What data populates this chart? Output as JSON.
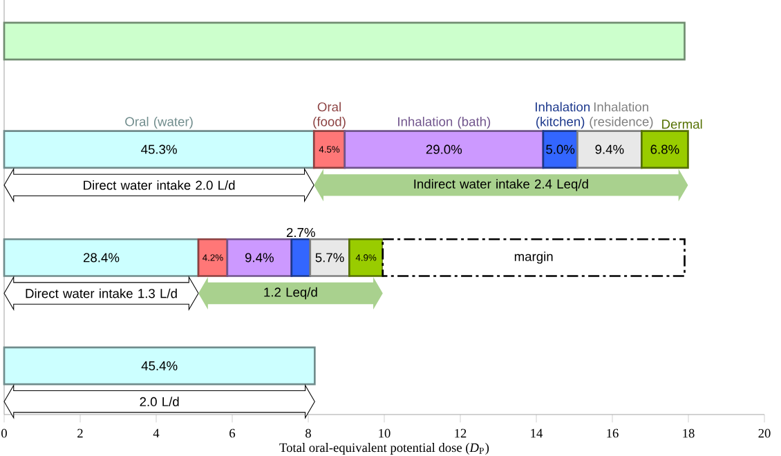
{
  "chart_data": {
    "type": "bar",
    "orientation": "horizontal",
    "stacked": true,
    "categories": [
      null,
      null,
      null,
      null
    ],
    "series": [
      {
        "color": "#ccffcc",
        "values": [
          17.9,
          null,
          null,
          null
        ]
      },
      {
        "name": "Oral (water)",
        "color": "#ccffff",
        "values": [
          null,
          8.15,
          5.11,
          8.17
        ]
      },
      {
        "name": "Oral (food)",
        "color": "#ff7777",
        "values": [
          null,
          0.81,
          0.76,
          null
        ]
      },
      {
        "name": "Inhalation (bath)",
        "color": "#cc99ff",
        "values": [
          null,
          5.22,
          1.69,
          null
        ]
      },
      {
        "name": "Inhalation (kitchen)",
        "color": "#3366ff",
        "values": [
          null,
          0.9,
          0.49,
          null
        ]
      },
      {
        "name": "Inhalation (residence)",
        "color": "#e8e8e8",
        "values": [
          null,
          1.69,
          1.03,
          null
        ]
      },
      {
        "name": "Dermal",
        "color": "#99cc00",
        "values": [
          null,
          1.22,
          0.88,
          null
        ]
      },
      {
        "color": "#ffffff",
        "line_style": "dashed",
        "values": [
          null,
          null,
          7.94,
          null
        ],
        "value_labels": [
          null,
          null,
          "margin",
          null
        ]
      }
    ],
    "xlim": [
      0,
      20
    ],
    "xticks": [
      0,
      2,
      4,
      6,
      8,
      10,
      12,
      14,
      16,
      18,
      20
    ],
    "xlabel": "Total oral-equivalent potential dose (*D*$_{P}$)",
    "annotations": [
      "Direct water intake  2.0 L/d",
      "Indirect water intake 2.4 Leq/d",
      "Direct water intake 1.3 L/d",
      "1.2 Leq/d",
      "2.0 L/d",
      "45.3%",
      "4.5%",
      "29.0%",
      "5.0%",
      "9.4%",
      "6.8%",
      "28.4%",
      "4.2%",
      "9.4%",
      "2.7%",
      "5.7%",
      "4.9%",
      "45.4%"
    ],
    "grid": false
  }
}
